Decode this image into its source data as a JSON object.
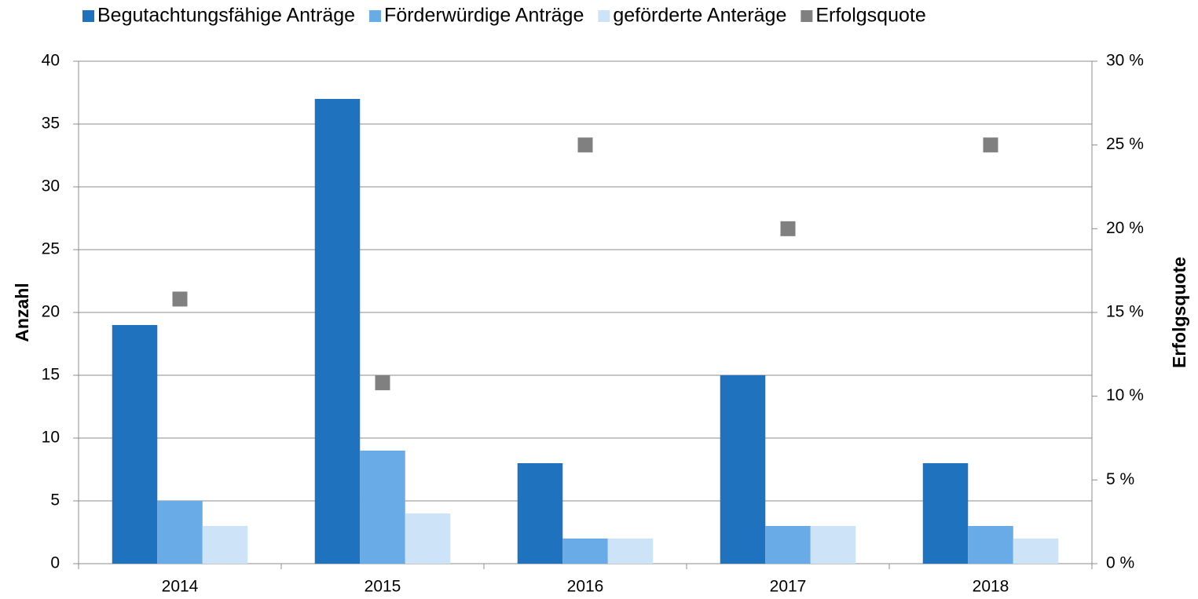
{
  "chart_data": {
    "type": "bar",
    "categories": [
      "2014",
      "2015",
      "2016",
      "2017",
      "2018"
    ],
    "series": [
      {
        "name": "Begutachtungsfähige Anträge",
        "color": "#1f73be",
        "values": [
          19,
          37,
          8,
          15,
          8
        ]
      },
      {
        "name": "Förderwürdige Anträge",
        "color": "#69abe6",
        "values": [
          5,
          9,
          2,
          3,
          3
        ]
      },
      {
        "name": "geförderte Anteräge",
        "color": "#cde3f8",
        "values": [
          3,
          4,
          2,
          3,
          2
        ]
      },
      {
        "name": "Erfolgsquote",
        "color": "#808080",
        "type": "scatter",
        "axis": "y2",
        "values": [
          15.8,
          10.8,
          25,
          20,
          25
        ]
      }
    ],
    "ylabel": "Anzahl",
    "y2label": "Erfolgsquote",
    "ylim": [
      0,
      40
    ],
    "yticks": [
      0,
      5,
      10,
      15,
      20,
      25,
      30,
      35,
      40
    ],
    "y2lim": [
      0,
      30
    ],
    "y2ticks": [
      {
        "value": 0,
        "label": "0 %"
      },
      {
        "value": 5,
        "label": "5 %"
      },
      {
        "value": 10,
        "label": "10 %"
      },
      {
        "value": 15,
        "label": "15 %"
      },
      {
        "value": 20,
        "label": "20 %"
      },
      {
        "value": 25,
        "label": "25 %"
      },
      {
        "value": 30,
        "label": "30 %"
      }
    ],
    "grid": true,
    "legend": "top"
  }
}
